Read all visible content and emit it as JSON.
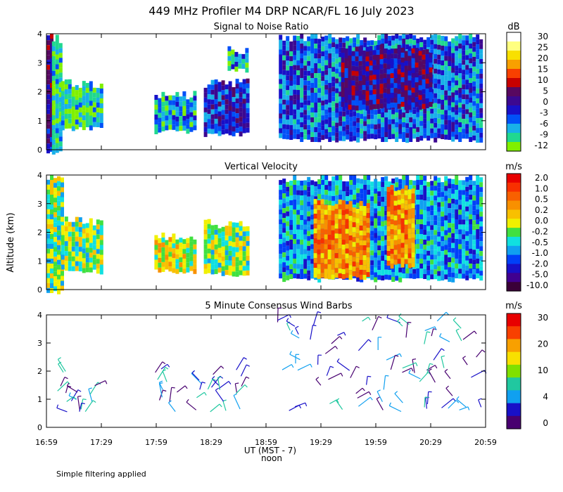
{
  "title": "449 MHz Profiler M4 DRP NCAR/FL 16 July 2023",
  "footnote": "Simple filtering applied",
  "colors": {
    "snr_scale": [
      "#80f000",
      "#20d890",
      "#18b0e8",
      "#0050f8",
      "#1810c8",
      "#3c0890",
      "#580860",
      "#c80000",
      "#f84000",
      "#f8a000",
      "#f8e000",
      "#ffff80",
      "#ffffff"
    ],
    "vv_scale": [
      "#3a0038",
      "#400090",
      "#1810c8",
      "#0040f8",
      "#10a0f0",
      "#10e0e0",
      "#40e040",
      "#f0f000",
      "#f8c000",
      "#f89000",
      "#f86000",
      "#f83000",
      "#e80000"
    ],
    "wind_scale": [
      "#480070",
      "#1810c8",
      "#10a0f0",
      "#20c8a0",
      "#80e000",
      "#f8e000",
      "#f8a000",
      "#f84000",
      "#e80000"
    ]
  },
  "chart_data": [
    {
      "type": "heatmap",
      "title": "Signal to Noise Ratio",
      "ylabel": "",
      "ylim": [
        0,
        4
      ],
      "yticks": [
        "0",
        "1",
        "2",
        "3",
        "4"
      ],
      "colorbar_unit": "dB",
      "colorbar_labels": [
        "30",
        "25",
        "20",
        "15",
        "10",
        "5",
        "0",
        "-3",
        "-6",
        "-9",
        "-12"
      ],
      "data_blocks": [
        {
          "t0": "16:59",
          "t1": "17:02",
          "z0": 0.0,
          "z1": 4.0,
          "level": 5
        },
        {
          "t0": "17:02",
          "t1": "17:07",
          "z0": 0.0,
          "z1": 3.8,
          "level": 1
        },
        {
          "t0": "17:07",
          "t1": "17:30",
          "z0": 0.8,
          "z1": 2.3,
          "level": 1
        },
        {
          "t0": "17:58",
          "t1": "18:20",
          "z0": 0.7,
          "z1": 1.9,
          "level": 2
        },
        {
          "t0": "18:25",
          "t1": "18:49",
          "z0": 0.6,
          "z1": 2.3,
          "level": 4
        },
        {
          "t0": "18:38",
          "t1": "18:49",
          "z0": 2.8,
          "z1": 3.4,
          "level": 2
        },
        {
          "t0": "19:06",
          "t1": "20:57",
          "z0": 0.4,
          "z1": 3.9,
          "level": 3
        },
        {
          "t0": "19:40",
          "t1": "20:30",
          "z0": 1.5,
          "z1": 3.5,
          "level": 5
        }
      ]
    },
    {
      "type": "heatmap",
      "title": "Vertical Velocity",
      "ylabel": "Altitude (km)",
      "ylim": [
        0,
        4
      ],
      "yticks": [
        "0",
        "1",
        "2",
        "3",
        "4"
      ],
      "colorbar_unit": "m/s",
      "colorbar_labels": [
        "2.0",
        "1.0",
        "0.5",
        "0.2",
        "0.0",
        "-0.2",
        "-0.5",
        "-1.0",
        "-2.0",
        "-5.0",
        "-10.0"
      ],
      "data_blocks": [
        {
          "t0": "16:59",
          "t1": "17:07",
          "z0": 0.0,
          "z1": 4.0,
          "level": 6
        },
        {
          "t0": "17:07",
          "t1": "17:30",
          "z0": 0.7,
          "z1": 2.4,
          "level": 6
        },
        {
          "t0": "17:58",
          "t1": "18:20",
          "z0": 0.7,
          "z1": 1.9,
          "level": 7
        },
        {
          "t0": "18:25",
          "t1": "18:49",
          "z0": 0.6,
          "z1": 2.3,
          "level": 6
        },
        {
          "t0": "19:06",
          "t1": "20:57",
          "z0": 0.4,
          "z1": 3.9,
          "level": 4
        },
        {
          "t0": "19:25",
          "t1": "19:55",
          "z0": 0.5,
          "z1": 3.0,
          "level": 9
        },
        {
          "t0": "20:05",
          "t1": "20:20",
          "z0": 0.9,
          "z1": 3.6,
          "level": 9
        }
      ]
    },
    {
      "type": "scatter",
      "title": "5 Minute Consensus Wind Barbs",
      "ylabel": "",
      "ylim": [
        0,
        4
      ],
      "yticks": [
        "0",
        "1",
        "2",
        "3",
        "4"
      ],
      "colorbar_unit": "m/s",
      "colorbar_labels": [
        "30",
        "20",
        "10",
        "4",
        "0"
      ],
      "wind_time_ranges": [
        [
          "17:05",
          "17:30"
        ],
        [
          "17:58",
          "18:13"
        ],
        [
          "18:20",
          "18:50"
        ],
        [
          "19:05",
          "20:57"
        ]
      ],
      "wind_alt_range": [
        0.5,
        3.9
      ]
    }
  ],
  "x_axis": {
    "xlim_minutes": [
      0,
      240
    ],
    "ticks": [
      {
        "label": "16:59",
        "minute": 0
      },
      {
        "label": "17:29",
        "minute": 30
      },
      {
        "label": "17:59",
        "minute": 60
      },
      {
        "label": "18:29",
        "minute": 90
      },
      {
        "label": "18:59",
        "minute": 120
      },
      {
        "label": "19:29",
        "minute": 150
      },
      {
        "label": "19:59",
        "minute": 180
      },
      {
        "label": "20:29",
        "minute": 210
      },
      {
        "label": "20:59",
        "minute": 240
      }
    ],
    "label": "UT   (MST - 7)",
    "sublabel": "noon"
  }
}
